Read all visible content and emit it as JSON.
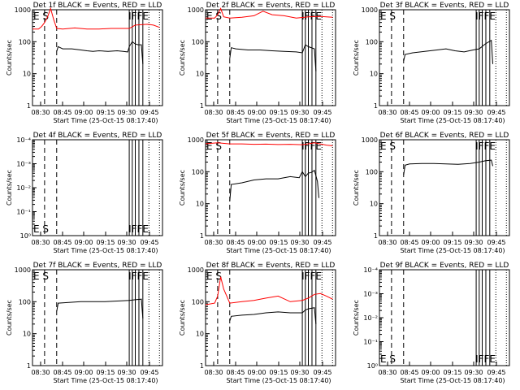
{
  "panels": [
    {
      "title": "Det 1f BLACK = Events, RED = LLD",
      "ylabel": "Counts/sec",
      "xlabel": "Start Time (25-Oct-15 08:17:40)",
      "yticks": [
        "1000",
        "100",
        "10",
        "1"
      ],
      "xticks": [
        "08:30",
        "08:45",
        "09:00",
        "09:15",
        "09:30",
        "09:45"
      ],
      "mark_es": "E S",
      "mark_end": "IFFE"
    },
    {
      "title": "Det 2f BLACK = Events, RED = LLD",
      "ylabel": "Counts/sec",
      "xlabel": "Start Time (25-Oct-15 08:17:40)",
      "yticks": [
        "1000",
        "100",
        "10",
        "1"
      ],
      "xticks": [
        "08:30",
        "08:45",
        "09:00",
        "09:15",
        "09:30",
        "09:45"
      ],
      "mark_es": "E S",
      "mark_end": "IFFE"
    },
    {
      "title": "Det 3f BLACK = Events, RED = LLD",
      "ylabel": "Counts/sec",
      "xlabel": "Start Time (25-Oct-15 08:17:40)",
      "yticks": [
        "1000",
        "100",
        "10",
        "1"
      ],
      "xticks": [
        "08:30",
        "08:45",
        "09:00",
        "09:15",
        "09:30",
        "09:45"
      ],
      "mark_es": "E S",
      "mark_end": "IFFE"
    },
    {
      "title": "Det 4f BLACK = Events, RED = LLD",
      "ylabel": "Counts/sec",
      "xlabel": "Start Time (25-Oct-15 08:17:40)",
      "yticks": [
        "10⁻⁴",
        "10⁻³",
        "10⁻²",
        "10⁻¹",
        "10⁰"
      ],
      "xticks": [
        "08:30",
        "08:45",
        "09:00",
        "09:15",
        "09:30",
        "09:45"
      ],
      "mark_es": "E S",
      "mark_end": "IFFE"
    },
    {
      "title": "Det 5f BLACK = Events, RED = LLD",
      "ylabel": "Counts/sec",
      "xlabel": "Start Time (25-Oct-15 08:17:40)",
      "yticks": [
        "1000",
        "100",
        "10",
        "1"
      ],
      "xticks": [
        "08:30",
        "08:45",
        "09:00",
        "09:15",
        "09:30",
        "09:45"
      ],
      "mark_es": "E S",
      "mark_end": "IFFE"
    },
    {
      "title": "Det 6f BLACK = Events, RED = LLD",
      "ylabel": "Counts/sec",
      "xlabel": "Start Time (25-Oct-15 08:17:40)",
      "yticks": [
        "1000",
        "100",
        "10",
        "1"
      ],
      "xticks": [
        "08:30",
        "08:45",
        "09:00",
        "09:15",
        "09:30",
        "09:45"
      ],
      "mark_es": "E S",
      "mark_end": "IFFE"
    },
    {
      "title": "Det 7f BLACK = Events, RED = LLD",
      "ylabel": "Counts/sec",
      "xlabel": "Start Time (25-Oct-15 08:17:40)",
      "yticks": [
        "1000",
        "100",
        "10",
        "1"
      ],
      "xticks": [
        "08:30",
        "08:45",
        "09:00",
        "09:15",
        "09:30",
        "09:45"
      ],
      "mark_es": "E S",
      "mark_end": "IFFE"
    },
    {
      "title": "Det 8f BLACK = Events, RED = LLD",
      "ylabel": "Counts/sec",
      "xlabel": "Start Time (25-Oct-15 08:17:40)",
      "yticks": [
        "1000",
        "100",
        "10",
        "1"
      ],
      "xticks": [
        "08:30",
        "08:45",
        "09:00",
        "09:15",
        "09:30",
        "09:45"
      ],
      "mark_es": "E S",
      "mark_end": "IFFE"
    },
    {
      "title": "Det 9f BLACK = Events, RED = LLD",
      "ylabel": "Counts/sec",
      "xlabel": "Start Time (25-Oct-15 08:17:40)",
      "yticks": [
        "10⁻⁴",
        "10⁻³",
        "10⁻²",
        "10⁻¹",
        "10⁰"
      ],
      "xticks": [
        "08:30",
        "08:45",
        "09:00",
        "09:15",
        "09:30",
        "09:45"
      ],
      "mark_es": "E S",
      "mark_end": "IFFE"
    }
  ],
  "chart_data": {
    "type": "line",
    "colors": {
      "events": "#000000",
      "lld": "#ff0000",
      "markers": "#000000"
    },
    "x_unit": "minutes",
    "xlim": [
      0,
      43
    ],
    "ylim_log": [
      1,
      1000
    ],
    "ylim_log_empty": [
      1,
      10000
    ],
    "log_scale_y": true,
    "dashed_markers_min": [
      4,
      8
    ],
    "solid_markers_min": [
      32,
      33,
      34,
      35.2,
      36.5
    ],
    "dotted_markers_min": [
      38.5,
      42
    ],
    "series": [
      {
        "det": "1f",
        "events": [
          [
            8,
            50
          ],
          [
            8.5,
            70
          ],
          [
            10,
            60
          ],
          [
            13,
            60
          ],
          [
            16,
            55
          ],
          [
            18,
            52
          ],
          [
            20,
            50
          ],
          [
            22,
            52
          ],
          [
            25,
            50
          ],
          [
            28,
            52
          ],
          [
            30,
            50
          ],
          [
            31.5,
            48
          ],
          [
            32,
            70
          ],
          [
            33,
            100
          ],
          [
            34,
            85
          ],
          [
            35,
            80
          ],
          [
            36,
            80
          ],
          [
            36.5,
            20
          ]
        ],
        "lld": [
          [
            0,
            250
          ],
          [
            2,
            250
          ],
          [
            3,
            300
          ],
          [
            4,
            400
          ],
          [
            5,
            600
          ],
          [
            6,
            1100
          ],
          [
            7,
            500
          ],
          [
            8,
            260
          ],
          [
            10,
            250
          ],
          [
            14,
            270
          ],
          [
            18,
            250
          ],
          [
            22,
            250
          ],
          [
            26,
            260
          ],
          [
            30,
            260
          ],
          [
            32,
            260
          ],
          [
            34,
            330
          ],
          [
            36,
            340
          ],
          [
            38,
            350
          ],
          [
            40,
            330
          ],
          [
            42,
            280
          ]
        ]
      },
      {
        "det": "2f",
        "events": [
          [
            8,
            30
          ],
          [
            8.5,
            65
          ],
          [
            10,
            60
          ],
          [
            14,
            55
          ],
          [
            18,
            55
          ],
          [
            22,
            52
          ],
          [
            26,
            50
          ],
          [
            30,
            48
          ],
          [
            32,
            45
          ],
          [
            33,
            80
          ],
          [
            34,
            70
          ],
          [
            36,
            60
          ],
          [
            36.5,
            12
          ]
        ],
        "lld": [
          [
            0,
            550
          ],
          [
            3,
            550
          ],
          [
            4,
            700
          ],
          [
            5,
            1100
          ],
          [
            6,
            600
          ],
          [
            8,
            550
          ],
          [
            12,
            580
          ],
          [
            16,
            650
          ],
          [
            19,
            900
          ],
          [
            22,
            700
          ],
          [
            26,
            650
          ],
          [
            30,
            550
          ],
          [
            34,
            600
          ],
          [
            38,
            620
          ],
          [
            42,
            580
          ]
        ]
      },
      {
        "det": "3f",
        "events": [
          [
            8,
            25
          ],
          [
            8.5,
            40
          ],
          [
            11,
            45
          ],
          [
            15,
            50
          ],
          [
            19,
            55
          ],
          [
            22,
            60
          ],
          [
            25,
            52
          ],
          [
            28,
            48
          ],
          [
            31,
            55
          ],
          [
            33,
            60
          ],
          [
            35,
            85
          ],
          [
            37,
            110
          ],
          [
            37.5,
            20
          ]
        ],
        "lld": []
      },
      {
        "det": "4f",
        "events": [],
        "lld": []
      },
      {
        "det": "5f",
        "events": [
          [
            8,
            12
          ],
          [
            8.5,
            40
          ],
          [
            12,
            45
          ],
          [
            16,
            55
          ],
          [
            20,
            60
          ],
          [
            24,
            60
          ],
          [
            28,
            70
          ],
          [
            31,
            65
          ],
          [
            32,
            100
          ],
          [
            33,
            70
          ],
          [
            34,
            90
          ],
          [
            35,
            95
          ],
          [
            36,
            110
          ],
          [
            37,
            50
          ],
          [
            37.5,
            15
          ]
        ],
        "lld": [
          [
            0,
            750
          ],
          [
            4,
            800
          ],
          [
            8,
            740
          ],
          [
            12,
            740
          ],
          [
            16,
            720
          ],
          [
            20,
            730
          ],
          [
            24,
            710
          ],
          [
            28,
            720
          ],
          [
            32,
            700
          ],
          [
            36,
            800
          ],
          [
            40,
            680
          ],
          [
            42,
            650
          ]
        ]
      },
      {
        "det": "6f",
        "events": [
          [
            8,
            80
          ],
          [
            8.5,
            160
          ],
          [
            10,
            175
          ],
          [
            14,
            180
          ],
          [
            18,
            180
          ],
          [
            22,
            175
          ],
          [
            26,
            170
          ],
          [
            30,
            180
          ],
          [
            33,
            200
          ],
          [
            35,
            220
          ],
          [
            37,
            230
          ],
          [
            37.5,
            150
          ]
        ],
        "lld": []
      },
      {
        "det": "7f",
        "events": [
          [
            8,
            50
          ],
          [
            8.5,
            90
          ],
          [
            12,
            95
          ],
          [
            16,
            100
          ],
          [
            20,
            100
          ],
          [
            24,
            100
          ],
          [
            28,
            105
          ],
          [
            32,
            110
          ],
          [
            34,
            115
          ],
          [
            36,
            120
          ],
          [
            36.5,
            30
          ]
        ],
        "lld": []
      },
      {
        "det": "8f",
        "events": [
          [
            8,
            25
          ],
          [
            8.5,
            35
          ],
          [
            12,
            38
          ],
          [
            16,
            40
          ],
          [
            20,
            45
          ],
          [
            24,
            48
          ],
          [
            28,
            45
          ],
          [
            32,
            45
          ],
          [
            33,
            55
          ],
          [
            34,
            60
          ],
          [
            36,
            65
          ],
          [
            36.5,
            20
          ]
        ],
        "lld": [
          [
            0,
            80
          ],
          [
            3,
            90
          ],
          [
            4,
            150
          ],
          [
            5,
            600
          ],
          [
            6,
            250
          ],
          [
            8,
            90
          ],
          [
            12,
            100
          ],
          [
            16,
            110
          ],
          [
            20,
            130
          ],
          [
            24,
            150
          ],
          [
            28,
            100
          ],
          [
            32,
            110
          ],
          [
            34,
            130
          ],
          [
            36,
            170
          ],
          [
            38,
            180
          ],
          [
            40,
            150
          ],
          [
            42,
            120
          ]
        ]
      },
      {
        "det": "9f",
        "events": [],
        "lld": []
      }
    ]
  }
}
